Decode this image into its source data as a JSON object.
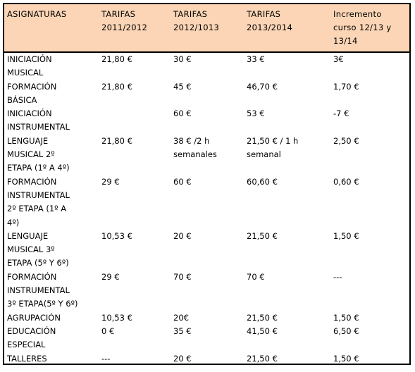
{
  "columns": [
    "ASIGNATURAS",
    "TARIFAS\n2011/2012",
    "TARIFAS\n2012/1013",
    "TARIFAS\n2013/2014",
    "Incremento\ncurso 12/13 y\n13/14"
  ],
  "rows": [
    [
      "INICIACIÓN\nMUSICAL",
      "21,80 €",
      "30 €",
      "33 €",
      "3€"
    ],
    [
      "FORMACIÓN\nBÁSICA",
      "21,80 €",
      "45 €",
      "46,70 €",
      "1,70 €"
    ],
    [
      "INICIACIÓN\nINSTRUMENTAL",
      "",
      "60 €",
      "53 €",
      "-7 €"
    ],
    [
      "LENGUAJE\nMUSICAL 2º\nETAPA (1º A 4º)",
      "21,80 €",
      "38 € /2 h\nsemanales",
      "21,50 € / 1 h\nsemanal",
      "2,50 €"
    ],
    [
      "FORMACIÓN\nINSTRUMENTAL\n2º ETAPA (1º A\n4º)",
      "29 €",
      "60 €",
      "60,60 €",
      "0,60 €"
    ],
    [
      "LENGUAJE\nMUSICAL 3º\nETAPA (5º Y 6º)",
      "10,53 €",
      "20 €",
      "21,50 €",
      "1,50 €"
    ],
    [
      "FORMACIÓN\nINSTRUMENTAL\n3º ETAPA(5º Y 6º)",
      "29 €",
      "70 €",
      "70 €",
      "---"
    ],
    [
      "AGRUPACIÓN",
      "10,53 €",
      "20€",
      "21,50 €",
      "1,50 €"
    ],
    [
      "EDUCACIÓN\nESPECIAL",
      "0 €",
      "35 €",
      "41,50 €",
      "6,50 €"
    ],
    [
      "TALLERES",
      "---",
      "20 €",
      "21,50 €",
      "1,50 €"
    ]
  ]
}
